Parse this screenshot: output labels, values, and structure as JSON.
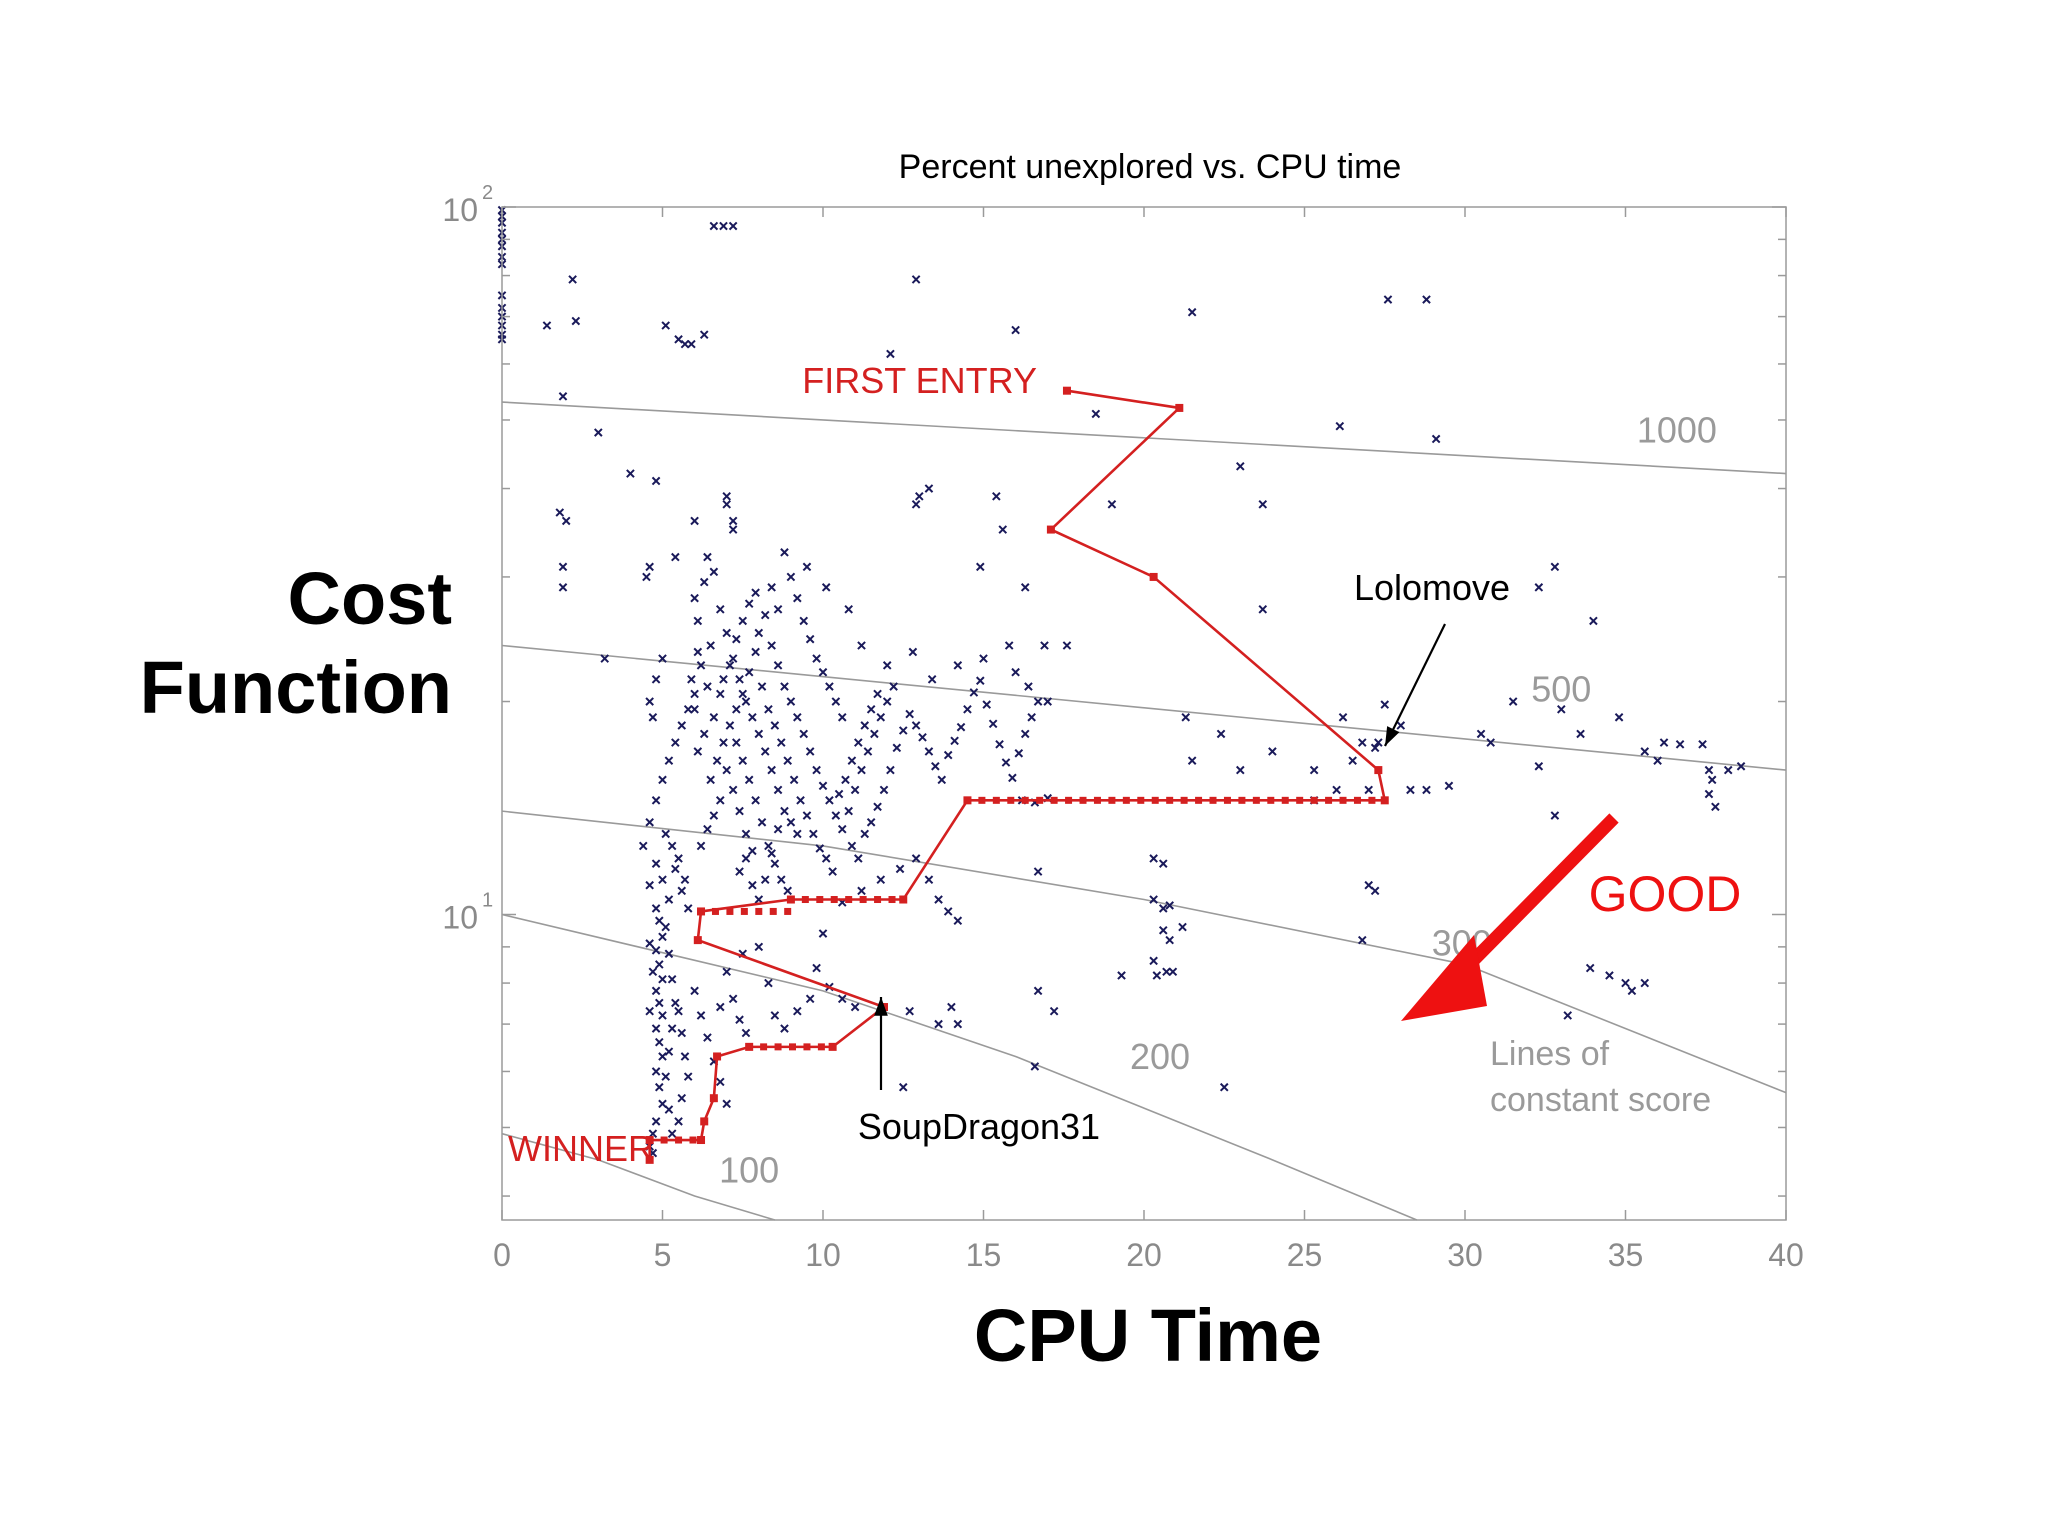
{
  "slide": {
    "ylabel": "Cost\nFunction",
    "xlabel": "CPU Time"
  },
  "chart_data": {
    "type": "scatter",
    "title": "Percent unexplored vs. CPU time",
    "xlabel": "",
    "ylabel": "",
    "xlim": [
      0,
      40
    ],
    "ylim": [
      3.7,
      100
    ],
    "yscale": "log",
    "x_ticks": [
      "0",
      "5",
      "10",
      "15",
      "20",
      "25",
      "30",
      "35",
      "40"
    ],
    "y_ticks": [
      {
        "base": "10",
        "exp": "1"
      },
      {
        "base": "10",
        "exp": "2"
      }
    ],
    "grid": false,
    "colors": {
      "points": "#1a1a5a",
      "path": "#d42020",
      "contours": "#9a9a9a",
      "arrow": "#ee1111",
      "annotation": "#000000"
    },
    "points": [
      [
        0,
        99
      ],
      [
        0,
        97
      ],
      [
        0,
        95
      ],
      [
        0,
        92
      ],
      [
        0,
        90
      ],
      [
        0,
        88
      ],
      [
        0,
        85
      ],
      [
        0,
        83
      ],
      [
        0,
        75
      ],
      [
        0,
        72
      ],
      [
        0,
        70
      ],
      [
        0,
        68
      ],
      [
        0,
        66
      ],
      [
        0,
        65
      ],
      [
        1.4,
        68
      ],
      [
        1.9,
        54
      ],
      [
        1.8,
        37
      ],
      [
        2.0,
        36
      ],
      [
        1.9,
        31
      ],
      [
        1.9,
        29
      ],
      [
        2.2,
        79
      ],
      [
        2.3,
        69
      ],
      [
        3.0,
        48
      ],
      [
        3.2,
        23
      ],
      [
        4.0,
        42
      ],
      [
        4.5,
        30
      ],
      [
        4.8,
        41
      ],
      [
        5.1,
        68
      ],
      [
        5.5,
        65
      ],
      [
        5.7,
        64
      ],
      [
        5.9,
        64
      ],
      [
        6.3,
        66
      ],
      [
        6.6,
        94
      ],
      [
        6.9,
        94
      ],
      [
        7.2,
        94
      ],
      [
        7.0,
        39
      ],
      [
        7.0,
        38
      ],
      [
        7.2,
        36
      ],
      [
        7.2,
        35
      ],
      [
        5.4,
        32
      ],
      [
        6.0,
        36
      ],
      [
        4.6,
        31
      ],
      [
        12.9,
        79
      ],
      [
        12.1,
        62
      ],
      [
        12.9,
        38
      ],
      [
        13.0,
        39
      ],
      [
        13.3,
        40
      ],
      [
        15.4,
        39
      ],
      [
        16.0,
        67
      ],
      [
        15.6,
        35
      ],
      [
        14.9,
        31
      ],
      [
        16.3,
        29
      ],
      [
        15.8,
        24
      ],
      [
        16.9,
        24
      ],
      [
        17.6,
        24
      ],
      [
        18.5,
        51
      ],
      [
        19.0,
        38
      ],
      [
        21.5,
        71
      ],
      [
        23.0,
        43
      ],
      [
        23.7,
        38
      ],
      [
        23.7,
        27
      ],
      [
        24.0,
        17
      ],
      [
        21.3,
        19
      ],
      [
        21.5,
        16.5
      ],
      [
        22.4,
        18
      ],
      [
        23.0,
        16
      ],
      [
        25.3,
        16
      ],
      [
        26.5,
        16.5
      ],
      [
        26.0,
        15
      ],
      [
        26.1,
        49
      ],
      [
        26.8,
        17.5
      ],
      [
        27.3,
        17.5
      ],
      [
        25.3,
        14.5
      ],
      [
        27.0,
        15
      ],
      [
        27.6,
        74
      ],
      [
        28.8,
        74
      ],
      [
        29.1,
        47
      ],
      [
        27.5,
        19.8
      ],
      [
        28.0,
        18.5
      ],
      [
        26.2,
        19
      ],
      [
        27.2,
        17.2
      ],
      [
        28.3,
        15
      ],
      [
        28.8,
        15
      ],
      [
        29.5,
        15.2
      ],
      [
        30.5,
        18
      ],
      [
        30.8,
        17.5
      ],
      [
        31.5,
        20.0
      ],
      [
        32.3,
        16.2
      ],
      [
        32.8,
        13.8
      ],
      [
        32.3,
        29
      ],
      [
        32.8,
        31
      ],
      [
        34.0,
        26
      ],
      [
        33.0,
        19.5
      ],
      [
        33.6,
        18
      ],
      [
        34.8,
        19.0
      ],
      [
        35.6,
        17
      ],
      [
        36.0,
        16.5
      ],
      [
        36.2,
        17.5
      ],
      [
        36.7,
        17.4
      ],
      [
        37.4,
        17.4
      ],
      [
        37.6,
        16
      ],
      [
        37.7,
        15.5
      ],
      [
        38.2,
        16
      ],
      [
        38.6,
        16.2
      ],
      [
        37.6,
        14.8
      ],
      [
        37.8,
        14.2
      ],
      [
        33.9,
        8.4
      ],
      [
        34.5,
        8.2
      ],
      [
        35.0,
        8.0
      ],
      [
        35.2,
        7.8
      ],
      [
        35.6,
        8.0
      ],
      [
        33.2,
        7.2
      ],
      [
        26.8,
        9.2
      ],
      [
        27.0,
        11.0
      ],
      [
        27.2,
        10.8
      ],
      [
        21.2,
        9.6
      ],
      [
        20.3,
        12.0
      ],
      [
        20.6,
        11.8
      ],
      [
        20.3,
        10.5
      ],
      [
        20.6,
        10.2
      ],
      [
        20.8,
        10.3
      ],
      [
        20.6,
        9.5
      ],
      [
        20.3,
        8.6
      ],
      [
        20.4,
        8.2
      ],
      [
        20.7,
        8.3
      ],
      [
        20.9,
        8.3
      ],
      [
        20.8,
        9.2
      ],
      [
        19.3,
        8.2
      ],
      [
        17.2,
        7.3
      ],
      [
        16.7,
        7.8
      ],
      [
        16.7,
        11.5
      ],
      [
        16.2,
        14.5
      ],
      [
        16.6,
        14.4
      ],
      [
        17.0,
        14.6
      ],
      [
        16.6,
        6.1
      ],
      [
        14.0,
        7.4
      ],
      [
        14.2,
        7.0
      ],
      [
        13.6,
        7.0
      ],
      [
        12.7,
        7.3
      ],
      [
        12.5,
        5.7
      ],
      [
        22.5,
        5.7
      ],
      [
        6.1,
        17.0
      ],
      [
        6.3,
        18.0
      ],
      [
        6.0,
        19.5
      ],
      [
        6.4,
        21.0
      ],
      [
        6.2,
        22.5
      ],
      [
        6.5,
        24.0
      ],
      [
        6.1,
        26.0
      ],
      [
        6.0,
        28.0
      ],
      [
        6.3,
        29.5
      ],
      [
        6.6,
        30.5
      ],
      [
        6.4,
        32.0
      ],
      [
        6.8,
        27.0
      ],
      [
        7.0,
        25.0
      ],
      [
        7.2,
        23.0
      ],
      [
        7.4,
        21.5
      ],
      [
        7.6,
        20.0
      ],
      [
        7.8,
        19.0
      ],
      [
        8.0,
        18.0
      ],
      [
        8.2,
        17.0
      ],
      [
        8.4,
        16.0
      ],
      [
        8.6,
        15.0
      ],
      [
        8.8,
        14.0
      ],
      [
        9.0,
        13.5
      ],
      [
        9.2,
        13.0
      ],
      [
        7.1,
        18.5
      ],
      [
        7.3,
        17.5
      ],
      [
        7.5,
        16.5
      ],
      [
        7.7,
        15.5
      ],
      [
        7.9,
        14.5
      ],
      [
        8.1,
        13.5
      ],
      [
        8.3,
        12.5
      ],
      [
        8.5,
        11.8
      ],
      [
        8.7,
        11.2
      ],
      [
        8.9,
        10.8
      ],
      [
        7.0,
        16.0
      ],
      [
        7.2,
        15.0
      ],
      [
        7.4,
        14.0
      ],
      [
        7.6,
        13.0
      ],
      [
        7.8,
        12.3
      ],
      [
        6.8,
        14.5
      ],
      [
        6.6,
        13.8
      ],
      [
        6.4,
        13.2
      ],
      [
        6.2,
        12.5
      ],
      [
        6.5,
        15.5
      ],
      [
        6.7,
        16.5
      ],
      [
        6.9,
        17.5
      ],
      [
        7.3,
        19.5
      ],
      [
        7.5,
        20.5
      ],
      [
        7.7,
        22.0
      ],
      [
        7.9,
        23.5
      ],
      [
        8.1,
        21.0
      ],
      [
        8.3,
        19.5
      ],
      [
        8.5,
        18.5
      ],
      [
        8.7,
        17.5
      ],
      [
        8.9,
        16.5
      ],
      [
        9.1,
        15.5
      ],
      [
        9.3,
        14.5
      ],
      [
        9.5,
        13.8
      ],
      [
        9.7,
        13.0
      ],
      [
        9.9,
        12.4
      ],
      [
        10.1,
        12.0
      ],
      [
        10.3,
        11.5
      ],
      [
        8.0,
        25.0
      ],
      [
        8.2,
        26.5
      ],
      [
        8.4,
        24.0
      ],
      [
        8.6,
        22.5
      ],
      [
        8.8,
        21.0
      ],
      [
        9.0,
        20.0
      ],
      [
        9.2,
        19.0
      ],
      [
        9.4,
        18.0
      ],
      [
        9.6,
        17.0
      ],
      [
        9.8,
        16.0
      ],
      [
        10.0,
        15.2
      ],
      [
        10.2,
        14.5
      ],
      [
        10.4,
        13.8
      ],
      [
        10.6,
        13.2
      ],
      [
        10.8,
        14.0
      ],
      [
        11.0,
        15.0
      ],
      [
        11.2,
        16.0
      ],
      [
        11.4,
        17.0
      ],
      [
        11.6,
        18.0
      ],
      [
        11.8,
        19.0
      ],
      [
        12.0,
        20.0
      ],
      [
        12.2,
        21.0
      ],
      [
        10.9,
        16.5
      ],
      [
        11.1,
        17.5
      ],
      [
        11.3,
        18.5
      ],
      [
        11.5,
        19.5
      ],
      [
        11.7,
        20.5
      ],
      [
        10.7,
        15.5
      ],
      [
        10.5,
        14.8
      ],
      [
        10.9,
        12.5
      ],
      [
        11.1,
        12.0
      ],
      [
        11.3,
        13.0
      ],
      [
        11.5,
        13.5
      ],
      [
        11.7,
        14.2
      ],
      [
        11.9,
        15.0
      ],
      [
        12.1,
        16.0
      ],
      [
        12.3,
        17.2
      ],
      [
        12.5,
        18.2
      ],
      [
        12.7,
        19.2
      ],
      [
        12.9,
        18.5
      ],
      [
        13.1,
        17.8
      ],
      [
        13.3,
        17.0
      ],
      [
        13.5,
        16.2
      ],
      [
        13.7,
        15.5
      ],
      [
        13.9,
        16.8
      ],
      [
        14.1,
        17.6
      ],
      [
        14.3,
        18.4
      ],
      [
        14.5,
        19.5
      ],
      [
        14.7,
        20.6
      ],
      [
        14.9,
        21.4
      ],
      [
        15.1,
        19.8
      ],
      [
        15.3,
        18.6
      ],
      [
        15.5,
        17.4
      ],
      [
        15.7,
        16.4
      ],
      [
        15.9,
        15.6
      ],
      [
        16.1,
        16.9
      ],
      [
        16.3,
        18.0
      ],
      [
        16.5,
        19.0
      ],
      [
        16.7,
        20.0
      ],
      [
        9.0,
        30.0
      ],
      [
        9.2,
        28.0
      ],
      [
        9.4,
        26.0
      ],
      [
        9.6,
        24.5
      ],
      [
        9.8,
        23.0
      ],
      [
        10.0,
        22.0
      ],
      [
        10.2,
        21.0
      ],
      [
        10.4,
        20.0
      ],
      [
        10.6,
        19.0
      ],
      [
        8.8,
        32.5
      ],
      [
        9.5,
        31.0
      ],
      [
        10.1,
        29.0
      ],
      [
        10.8,
        27.0
      ],
      [
        11.2,
        24.0
      ],
      [
        12.0,
        22.5
      ],
      [
        12.8,
        23.5
      ],
      [
        13.4,
        21.5
      ],
      [
        14.2,
        22.5
      ],
      [
        15.0,
        23.0
      ],
      [
        16.0,
        22.0
      ],
      [
        16.4,
        21.0
      ],
      [
        17.0,
        20.0
      ],
      [
        6.9,
        21.5
      ],
      [
        7.1,
        22.5
      ],
      [
        7.3,
        24.5
      ],
      [
        7.5,
        26.0
      ],
      [
        7.7,
        27.5
      ],
      [
        7.9,
        28.5
      ],
      [
        6.6,
        19.0
      ],
      [
        6.8,
        20.5
      ],
      [
        8.4,
        29.0
      ],
      [
        8.6,
        27.0
      ],
      [
        7.4,
        11.5
      ],
      [
        7.6,
        12.0
      ],
      [
        7.8,
        11.0
      ],
      [
        8.0,
        10.5
      ],
      [
        8.2,
        11.2
      ],
      [
        8.4,
        12.2
      ],
      [
        8.6,
        13.2
      ],
      [
        4.6,
        11.0
      ],
      [
        4.8,
        11.8
      ],
      [
        5.0,
        11.2
      ],
      [
        5.2,
        10.5
      ],
      [
        5.4,
        11.6
      ],
      [
        5.6,
        10.8
      ],
      [
        5.8,
        10.2
      ],
      [
        5.1,
        13.0
      ],
      [
        5.3,
        12.5
      ],
      [
        5.5,
        12.0
      ],
      [
        5.7,
        11.2
      ],
      [
        4.4,
        12.5
      ],
      [
        4.6,
        13.5
      ],
      [
        4.8,
        14.5
      ],
      [
        5.0,
        15.5
      ],
      [
        5.2,
        16.5
      ],
      [
        5.4,
        17.5
      ],
      [
        5.6,
        18.5
      ],
      [
        5.8,
        19.5
      ],
      [
        6.0,
        20.5
      ],
      [
        4.6,
        20.0
      ],
      [
        4.8,
        21.5
      ],
      [
        5.0,
        23.0
      ],
      [
        4.7,
        19.0
      ],
      [
        5.9,
        21.5
      ],
      [
        6.1,
        23.5
      ],
      [
        4.8,
        10.2
      ],
      [
        4.9,
        9.8
      ],
      [
        5.0,
        9.3
      ],
      [
        4.8,
        8.9
      ],
      [
        4.9,
        8.5
      ],
      [
        5.0,
        8.1
      ],
      [
        4.8,
        7.8
      ],
      [
        4.9,
        7.5
      ],
      [
        5.0,
        7.2
      ],
      [
        4.8,
        6.9
      ],
      [
        4.9,
        6.6
      ],
      [
        5.0,
        6.3
      ],
      [
        4.8,
        6.0
      ],
      [
        4.9,
        5.7
      ],
      [
        5.0,
        5.4
      ],
      [
        4.8,
        5.1
      ],
      [
        4.7,
        4.9
      ],
      [
        4.6,
        4.7
      ],
      [
        4.7,
        4.6
      ],
      [
        4.6,
        7.3
      ],
      [
        4.7,
        8.3
      ],
      [
        4.6,
        9.1
      ],
      [
        5.1,
        9.6
      ],
      [
        5.2,
        8.8
      ],
      [
        5.3,
        8.1
      ],
      [
        5.4,
        7.5
      ],
      [
        5.3,
        6.9
      ],
      [
        5.2,
        6.4
      ],
      [
        5.1,
        5.9
      ],
      [
        5.2,
        5.3
      ],
      [
        5.3,
        4.9
      ],
      [
        5.5,
        7.3
      ],
      [
        5.6,
        6.8
      ],
      [
        5.7,
        6.3
      ],
      [
        5.8,
        5.9
      ],
      [
        5.6,
        5.5
      ],
      [
        5.5,
        5.1
      ],
      [
        6.0,
        7.8
      ],
      [
        6.2,
        7.2
      ],
      [
        6.4,
        6.7
      ],
      [
        6.6,
        6.2
      ],
      [
        6.8,
        5.8
      ],
      [
        7.0,
        5.4
      ],
      [
        7.2,
        7.6
      ],
      [
        7.4,
        7.1
      ],
      [
        7.6,
        6.8
      ],
      [
        6.8,
        7.4
      ],
      [
        7.0,
        8.3
      ],
      [
        7.5,
        8.8
      ],
      [
        8.0,
        9.0
      ],
      [
        8.3,
        8.0
      ],
      [
        8.5,
        7.2
      ],
      [
        8.8,
        6.9
      ],
      [
        9.2,
        7.3
      ],
      [
        9.6,
        7.6
      ],
      [
        10.2,
        7.9
      ],
      [
        10.6,
        7.6
      ],
      [
        11.0,
        7.4
      ],
      [
        9.8,
        8.4
      ],
      [
        10.0,
        9.4
      ],
      [
        10.6,
        10.4
      ],
      [
        11.2,
        10.8
      ],
      [
        11.8,
        11.2
      ],
      [
        12.4,
        11.6
      ],
      [
        12.9,
        12.0
      ],
      [
        13.3,
        11.2
      ],
      [
        13.6,
        10.5
      ],
      [
        13.9,
        10.1
      ],
      [
        14.2,
        9.8
      ]
    ],
    "path": [
      [
        17.6,
        55
      ],
      [
        21.1,
        52
      ],
      [
        17.1,
        35
      ],
      [
        20.3,
        30
      ],
      [
        27.3,
        16
      ],
      [
        27.5,
        14.5
      ],
      [
        14.5,
        14.5
      ],
      [
        12.5,
        10.5
      ],
      [
        9.0,
        10.5
      ],
      [
        6.2,
        10.1
      ],
      [
        6.1,
        9.2
      ],
      [
        11.9,
        7.4
      ],
      [
        10.3,
        6.5
      ],
      [
        7.7,
        6.5
      ],
      [
        6.7,
        6.3
      ],
      [
        6.6,
        5.5
      ],
      [
        6.3,
        5.1
      ],
      [
        6.2,
        4.8
      ],
      [
        4.6,
        4.8
      ],
      [
        4.6,
        4.5
      ]
    ],
    "contours": [
      {
        "label": "1000",
        "x": [
          0,
          40
        ],
        "y": [
          53,
          42
        ]
      },
      {
        "label": "500",
        "x": [
          0,
          40
        ],
        "y": [
          24,
          16
        ]
      },
      {
        "label": "300",
        "x": [
          0,
          10,
          20,
          30,
          40
        ],
        "y": [
          14,
          12.5,
          10.5,
          8.5,
          5.6
        ]
      },
      {
        "label": "200",
        "x": [
          0,
          10,
          16,
          24,
          28.5
        ],
        "y": [
          10,
          7.8,
          6.3,
          4.5,
          3.7
        ]
      },
      {
        "label": "100",
        "x": [
          0,
          3,
          6,
          8.5
        ],
        "y": [
          4.9,
          4.5,
          4.0,
          3.7
        ]
      }
    ],
    "annotations": {
      "first_entry": "FIRST ENTRY",
      "winner": "WINNER",
      "lolomove": "Lolomove",
      "soupdragon": "SoupDragon31",
      "good": "GOOD",
      "lines_of_constant_score_1": "Lines of",
      "lines_of_constant_score_2": "constant score"
    }
  }
}
